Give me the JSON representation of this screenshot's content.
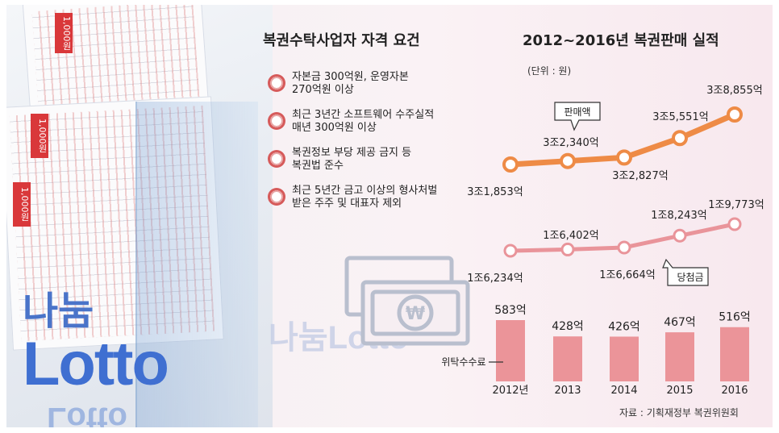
{
  "left_title": "복권수탁사업자 자격 요건",
  "requirements": [
    {
      "lines": [
        "자본금 300억원, 운영자본",
        "270억원 이상"
      ]
    },
    {
      "lines": [
        "최근 3년간 소프트웨어 수주실적",
        "매년 300억원 이상"
      ]
    },
    {
      "lines": [
        "복권정보 부당 제공 금지 등",
        "복권법 준수"
      ]
    },
    {
      "lines": [
        "최근 5년간 금고 이상의 형사처벌",
        "받은 주주 및 대표자 제외"
      ]
    }
  ],
  "chart_title": "2012~2016년 복권판매 실적",
  "unit": "(단위 : 원)",
  "source": "자료 : 기획재정부 복권위원회",
  "logo": {
    "nanum": "나눔",
    "lotto": "Lotto"
  },
  "colors": {
    "sales": "#ee8b46",
    "prize": "#e9949a",
    "fee": "#eb9499"
  },
  "chart_data": {
    "type": "line",
    "categories": [
      "2012년",
      "2013",
      "2014",
      "2015",
      "2016"
    ],
    "series": [
      {
        "name": "판매액",
        "values_won_100m": [
          31853,
          32340,
          32827,
          35551,
          38855
        ],
        "labels": [
          "3조1,853억",
          "3조2,340억",
          "3조2,827억",
          "3조5,551억",
          "3조8,855억"
        ]
      },
      {
        "name": "당첨금",
        "values_won_100m": [
          16234,
          16402,
          16664,
          18243,
          19773
        ],
        "labels": [
          "1조6,234억",
          "1조6,402억",
          "1조6,664억",
          "1조8,243억",
          "1조9,773억"
        ]
      },
      {
        "name": "위탁수수료",
        "type": "bar",
        "values_won_100m": [
          583,
          428,
          426,
          467,
          516
        ],
        "labels": [
          "583억",
          "428억",
          "426억",
          "467억",
          "516억"
        ]
      }
    ]
  }
}
